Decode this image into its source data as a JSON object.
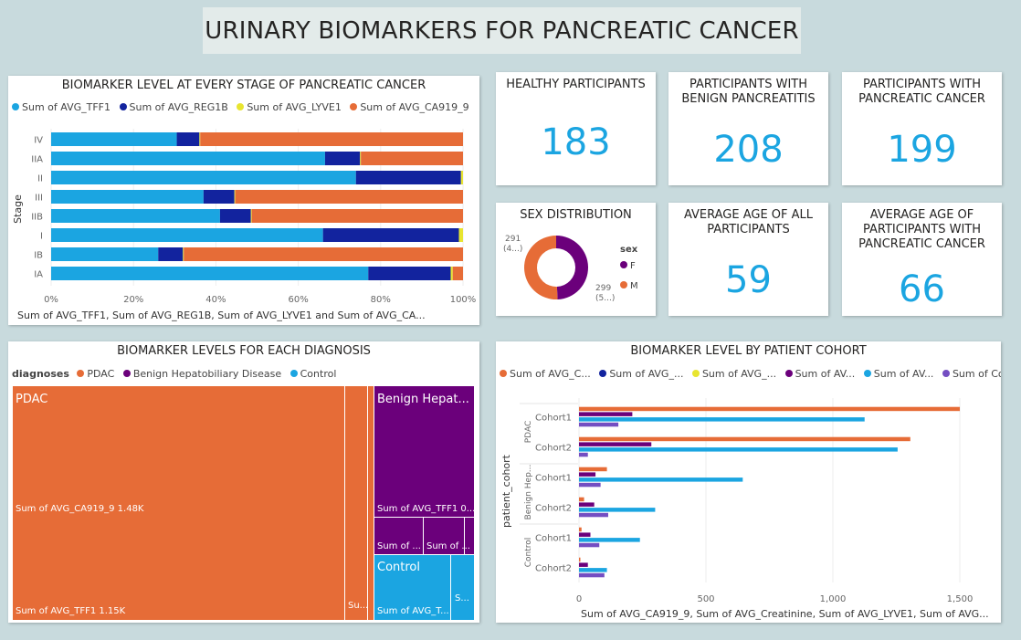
{
  "page_title": "URINARY BIOMARKERS FOR PANCREATIC CANCER",
  "colors": {
    "tff1": "#1ba5e1",
    "reg1b": "#12239e",
    "lyve1": "#e8e530",
    "ca919": "#e66c37",
    "purple": "#6b007b",
    "violet": "#744ec2",
    "kpi": "#1ba5e1"
  },
  "kpis": [
    {
      "title": "HEALTHY PARTICIPANTS",
      "value": "183"
    },
    {
      "title": "PARTICIPANTS WITH BENIGN PANCREATITIS",
      "value": "208"
    },
    {
      "title": "PARTICIPANTS WITH PANCREATIC CANCER",
      "value": "199"
    },
    {
      "title": "AVERAGE AGE OF ALL PARTICIPANTS",
      "value": "59"
    },
    {
      "title": "AVERAGE AGE OF PARTICIPANTS WITH PANCREATIC CANCER",
      "value": "66"
    }
  ],
  "stage_chart": {
    "title": "BIOMARKER LEVEL AT EVERY STAGE OF PANCREATIC CANCER",
    "legend": [
      "Sum of AVG_TFF1",
      "Sum of AVG_REG1B",
      "Sum of AVG_LYVE1",
      "Sum of AVG_CA919_9"
    ],
    "ylabel": "Stage",
    "xlabel": "Sum of AVG_TFF1, Sum of AVG_REG1B, Sum of AVG_LYVE1 and Sum of AVG_CA...",
    "x_ticks": [
      "0%",
      "20%",
      "40%",
      "60%",
      "80%",
      "100%"
    ]
  },
  "sex_chart": {
    "title": "SEX DISTRIBUTION",
    "legend_title": "sex",
    "labels": {
      "f_value": "291",
      "f_pct": "(4...)",
      "m_value": "299",
      "m_pct": "(5...)"
    }
  },
  "treemap": {
    "title": "BIOMARKER LEVELS FOR EACH DIAGNOSIS",
    "legend_lead": "diagnoses",
    "legend": [
      "PDAC",
      "Benign Hepatobiliary Disease",
      "Control"
    ],
    "labels": {
      "pdac": "PDAC",
      "pdac_ca": "Sum of AVG_CA919_9 1.48K",
      "pdac_tff1": "Sum of AVG_TFF1 1.15K",
      "pdac_su": "Su...",
      "benign": "Benign Hepat...",
      "benign_tff1": "Sum of AVG_TFF1 0...",
      "benign_a": "Sum of ...",
      "benign_b": "Sum of ...",
      "control": "Control",
      "control_t": "Sum of AVG_T...",
      "control_s": "S..."
    }
  },
  "cohort_chart": {
    "title": "BIOMARKER LEVEL BY PATIENT COHORT",
    "legend": [
      "Sum of AVG_C...",
      "Sum of AVG_...",
      "Sum of AVG_...",
      "Sum of AV...",
      "Sum of AV...",
      "Sum of Co..."
    ],
    "ylabel": "patient_cohort",
    "xlabel": "Sum of AVG_CA919_9, Sum of AVG_Creatinine, Sum of AVG_LYVE1, Sum of AVG...",
    "groups": [
      "PDAC",
      "Benign Hep...",
      "Control"
    ],
    "x_ticks": [
      "0",
      "500",
      "1,000",
      "1,500"
    ]
  },
  "chart_data": [
    {
      "type": "bar",
      "orientation": "horizontal",
      "stacked": "100%",
      "title": "BIOMARKER LEVEL AT EVERY STAGE OF PANCREATIC CANCER",
      "categories": [
        "IV",
        "IIA",
        "II",
        "III",
        "IIB",
        "I",
        "IB",
        "IA"
      ],
      "series": [
        {
          "name": "Sum of AVG_TFF1",
          "values": [
            30.5,
            66.5,
            74,
            37,
            41,
            66,
            26,
            77
          ]
        },
        {
          "name": "Sum of AVG_REG1B",
          "values": [
            5.5,
            8.5,
            25.5,
            7.5,
            7.5,
            33,
            6,
            20
          ]
        },
        {
          "name": "Sum of AVG_LYVE1",
          "values": [
            0.2,
            0.2,
            0.5,
            0.2,
            0.2,
            1,
            0.2,
            0.5
          ]
        },
        {
          "name": "Sum of AVG_CA919_9",
          "values": [
            63.8,
            24.8,
            0,
            55.3,
            51.3,
            0,
            67.8,
            2.5
          ]
        }
      ],
      "ylabel": "Stage",
      "xlim": [
        0,
        100
      ]
    },
    {
      "type": "pie",
      "donut": true,
      "title": "SEX DISTRIBUTION",
      "categories": [
        "F",
        "M"
      ],
      "values": [
        291,
        299
      ],
      "legend": "right"
    },
    {
      "type": "bar",
      "orientation": "horizontal",
      "title": "BIOMARKER LEVEL BY PATIENT COHORT",
      "categories": [
        "PDAC Cohort1",
        "PDAC Cohort2",
        "Benign Hep... Cohort1",
        "Benign Hep... Cohort2",
        "Control Cohort1",
        "Control Cohort2"
      ],
      "series": [
        {
          "name": "Sum of AVG_C...",
          "values": [
            1500,
            1305,
            110,
            20,
            10,
            5
          ]
        },
        {
          "name": "Sum of AVG_...",
          "values": [
            0,
            0,
            0,
            0,
            0,
            0
          ]
        },
        {
          "name": "Sum of AVG_...",
          "values": [
            0,
            0,
            0,
            0,
            0,
            0
          ]
        },
        {
          "name": "Sum of AV...",
          "values": [
            210,
            285,
            65,
            60,
            45,
            35
          ]
        },
        {
          "name": "Sum of AV...",
          "values": [
            1125,
            1255,
            645,
            300,
            240,
            110
          ]
        },
        {
          "name": "Sum of Co...",
          "values": [
            155,
            35,
            85,
            115,
            80,
            100
          ]
        }
      ],
      "ylabel": "patient_cohort",
      "xlim": [
        0,
        1600
      ]
    }
  ]
}
